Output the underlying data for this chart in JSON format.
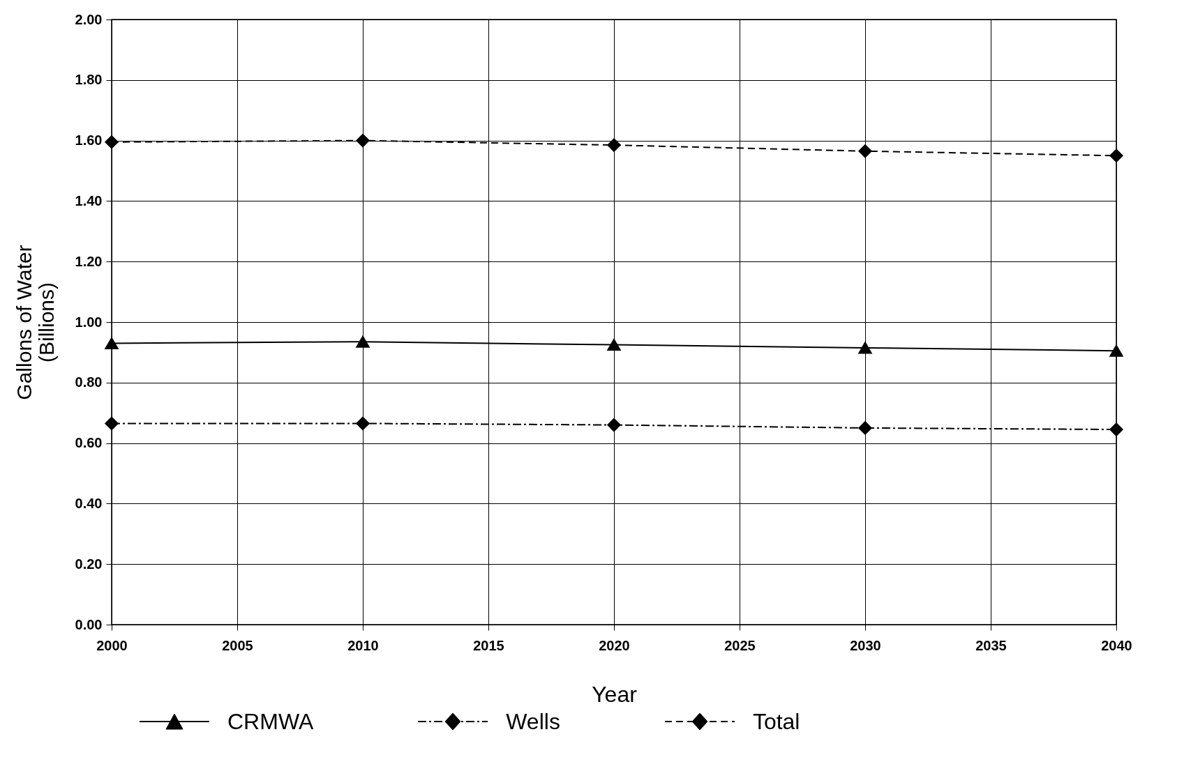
{
  "chart_data": {
    "type": "line",
    "xlabel": "Year",
    "ylabel": "Gallons of Water\n(Billions)",
    "x": [
      2000,
      2010,
      2020,
      2030,
      2040
    ],
    "xlim": [
      2000,
      2040
    ],
    "xticks": [
      2000,
      2005,
      2010,
      2015,
      2020,
      2025,
      2030,
      2035,
      2040
    ],
    "ylim": [
      0,
      2
    ],
    "yticks": [
      {
        "value": 0,
        "label": "0.00"
      },
      {
        "value": 0.2,
        "label": "0.20"
      },
      {
        "value": 0.4,
        "label": "0.40"
      },
      {
        "value": 0.6,
        "label": "0.60"
      },
      {
        "value": 0.8,
        "label": "0.80"
      },
      {
        "value": 1,
        "label": "1.00"
      },
      {
        "value": 1.2,
        "label": "1.20"
      },
      {
        "value": 1.4,
        "label": "1.40"
      },
      {
        "value": 1.6,
        "label": "1.60"
      },
      {
        "value": 1.8,
        "label": "1.80"
      },
      {
        "value": 2,
        "label": "2.00"
      }
    ],
    "grid": true,
    "legend": "bottom",
    "series": [
      {
        "name": "CRMWA",
        "color": "#000000",
        "values": [
          0.93,
          0.935,
          0.925,
          0.915,
          0.905
        ],
        "marker": "triangle",
        "line_style": "solid"
      },
      {
        "name": "Wells",
        "color": "#000000",
        "values": [
          0.665,
          0.665,
          0.66,
          0.65,
          0.645
        ],
        "marker": "diamond",
        "line_style": "dashdot"
      },
      {
        "name": "Total",
        "color": "#000000",
        "values": [
          1.595,
          1.6,
          1.585,
          1.565,
          1.55
        ],
        "marker": "diamond",
        "line_style": "dashed"
      }
    ]
  }
}
